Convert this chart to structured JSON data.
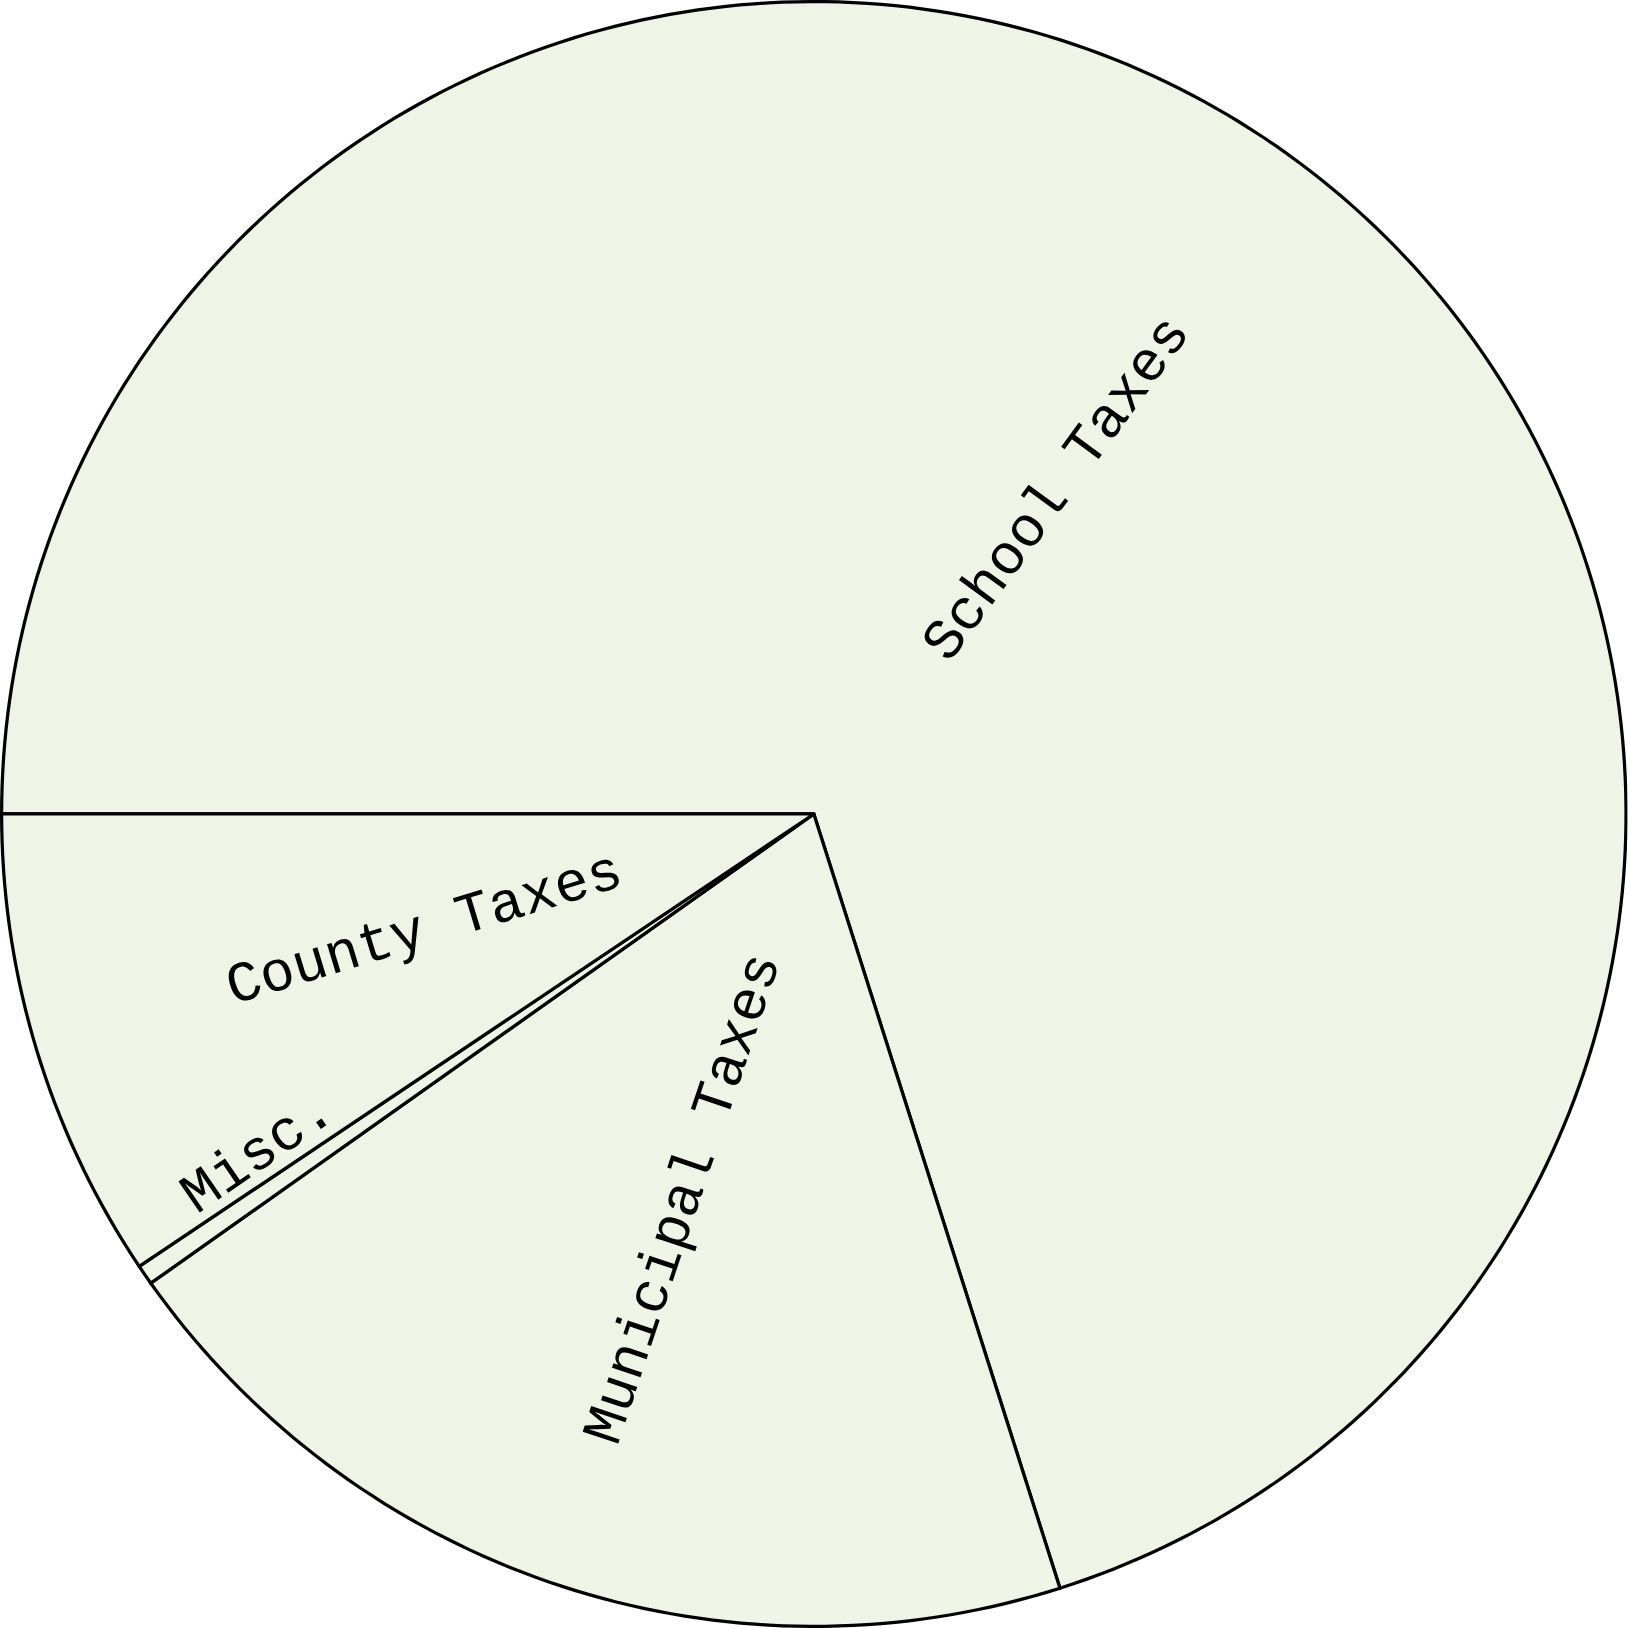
{
  "chart_data": {
    "type": "pie",
    "categories": [
      "School Taxes",
      "Municipal Taxes",
      "Misc.",
      "County Taxes"
    ],
    "values": [
      70.1,
      20.1,
      0.4,
      9.4
    ],
    "colors": [
      "#eef5e6",
      "#eef5e6",
      "#eef5e6",
      "#eef5e6"
    ]
  }
}
